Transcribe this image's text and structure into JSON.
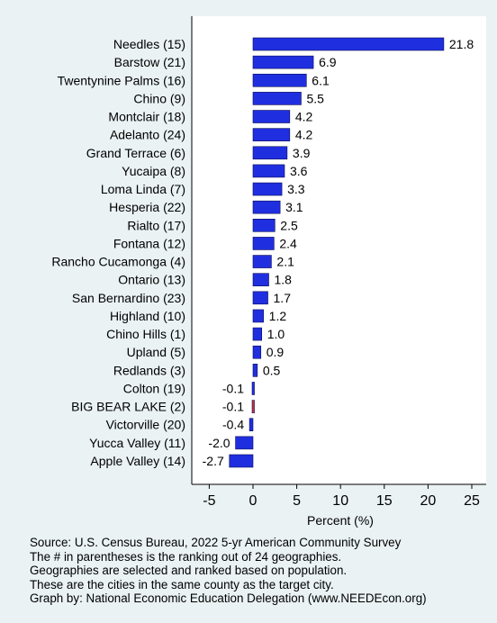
{
  "chart_data": {
    "type": "bar",
    "orientation": "horizontal",
    "categories": [
      "Needles (15)",
      "Barstow (21)",
      "Twentynine Palms (16)",
      "Chino  (9)",
      "Montclair (18)",
      "Adelanto (24)",
      "Grand Terrace  (6)",
      "Yucaipa  (8)",
      "Loma Linda  (7)",
      "Hesperia (22)",
      "Rialto (17)",
      "Fontana (12)",
      "Rancho Cucamonga  (4)",
      "Ontario (13)",
      "San Bernardino (23)",
      "Highland (10)",
      "Chino Hills  (1)",
      "Upland  (5)",
      "Redlands  (3)",
      "Colton (19)",
      "BIG BEAR LAKE  (2)",
      "Victorville (20)",
      "Yucca Valley (11)",
      "Apple Valley (14)"
    ],
    "values": [
      21.8,
      6.9,
      6.1,
      5.5,
      4.2,
      4.2,
      3.9,
      3.6,
      3.3,
      3.1,
      2.5,
      2.4,
      2.1,
      1.8,
      1.7,
      1.2,
      1.0,
      0.9,
      0.5,
      -0.1,
      -0.1,
      -0.4,
      -2.0,
      -2.7
    ],
    "value_labels": [
      "21.8",
      "6.9",
      "6.1",
      "5.5",
      "4.2",
      "4.2",
      "3.9",
      "3.6",
      "3.3",
      "3.1",
      "2.5",
      "2.4",
      "2.1",
      "1.8",
      "1.7",
      "1.2",
      "1.0",
      "0.9",
      "0.5",
      "-0.1",
      "-0.1",
      "-0.4",
      "-2.0",
      "-2.7"
    ],
    "highlight_index": 20,
    "xlabel": "Percent (%)",
    "xlim": [
      -7,
      27
    ],
    "xticks": [
      -5,
      0,
      5,
      10,
      15,
      20,
      25
    ],
    "grid": false,
    "colors": {
      "bar": "#1f2fe0",
      "highlight": "#c8333a",
      "background": "#eaf2f3",
      "plot_background": "#ffffff"
    }
  },
  "notes": [
    "Source: U.S. Census Bureau, 2022 5-yr American Community Survey",
    "The # in parentheses is the ranking out of 24 geographies.",
    "Geographies are selected and ranked based on population.",
    "These are the cities in the same county as the target city.",
    "Graph by: National Economic Education Delegation (www.NEEDEcon.org)"
  ]
}
